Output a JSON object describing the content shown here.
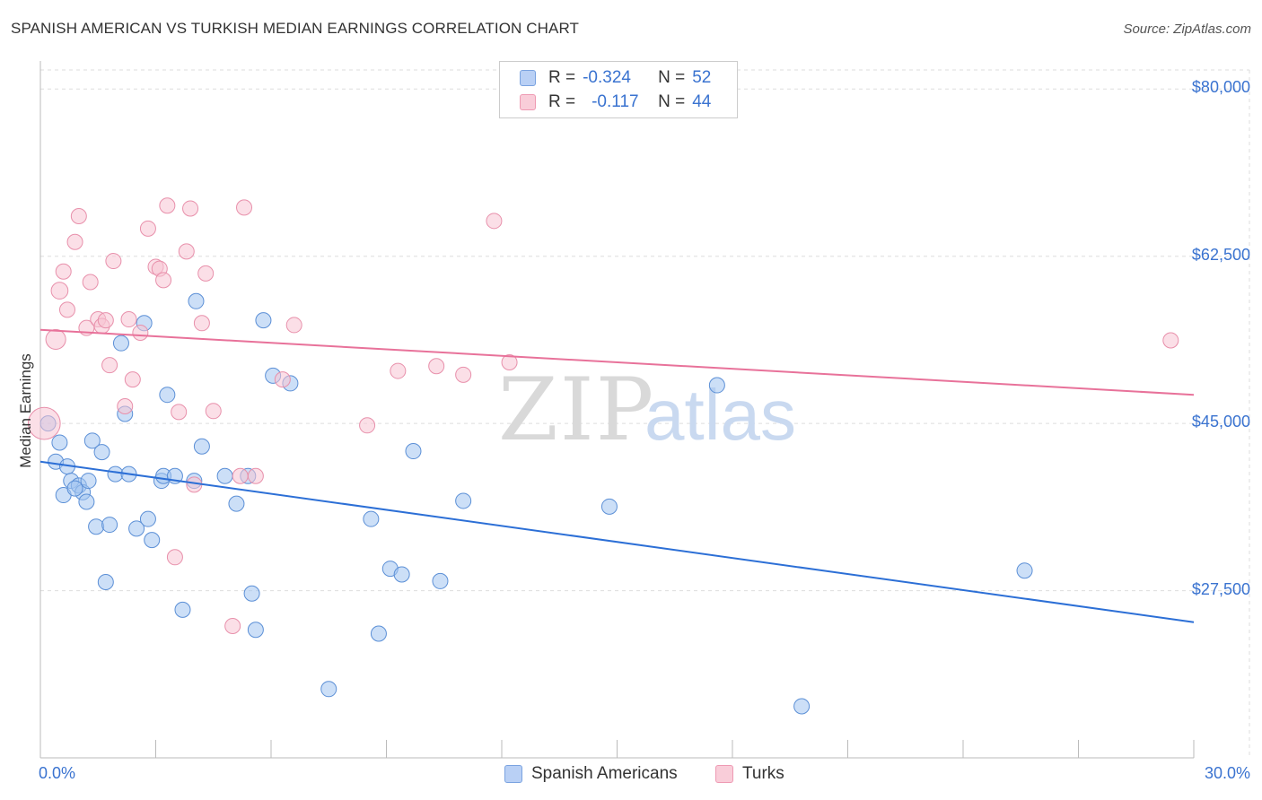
{
  "title": "SPANISH AMERICAN VS TURKISH MEDIAN EARNINGS CORRELATION CHART",
  "source": "Source: ZipAtlas.com",
  "watermark": {
    "zip": "ZIP",
    "atlas": "atlas"
  },
  "legend": {
    "rows": [
      {
        "r_label": "R =",
        "r_value": "-0.324",
        "n_label": "N =",
        "n_value": "52",
        "color": "#b9d0f5",
        "border": "#7aa3e0"
      },
      {
        "r_label": "R =",
        "r_value": "-0.117",
        "n_label": "N =",
        "n_value": "44",
        "color": "#f9cdd9",
        "border": "#ee9ab3"
      }
    ]
  },
  "bottom_legend": [
    {
      "label": "Spanish Americans",
      "color": "#b9d0f5",
      "border": "#7aa3e0"
    },
    {
      "label": "Turks",
      "color": "#f9cdd9",
      "border": "#ee9ab3"
    }
  ],
  "colors": {
    "blue_point_fill": "rgba(163,196,240,0.55)",
    "blue_point_stroke": "#5b8fd6",
    "blue_line": "#2c6fd6",
    "pink_point_fill": "rgba(248,196,212,0.55)",
    "pink_point_stroke": "#e890ab",
    "pink_line": "#e8729a",
    "grid": "#dddddd",
    "axis_text": "#3a73d0"
  },
  "chart_data": {
    "type": "scatter",
    "title": "SPANISH AMERICAN VS TURKISH MEDIAN EARNINGS CORRELATION CHART",
    "xlabel": "",
    "ylabel": "Median Earnings",
    "xlim": [
      0,
      30
    ],
    "ylim": [
      10000,
      82000
    ],
    "x_tick_labels": [
      "0.0%",
      "30.0%"
    ],
    "y_ticks": [
      27500,
      45000,
      62500,
      80000
    ],
    "y_tick_labels": [
      "$27,500",
      "$45,000",
      "$62,500",
      "$80,000"
    ],
    "grid": true,
    "series": [
      {
        "name": "Spanish Americans",
        "r": -0.324,
        "n": 52,
        "trend": {
          "x": [
            0,
            30
          ],
          "y": [
            41000,
            24200
          ]
        },
        "points": [
          [
            0.2,
            45000,
            1.0
          ],
          [
            0.4,
            41000,
            1.0
          ],
          [
            0.5,
            43000,
            1.0
          ],
          [
            0.6,
            37500,
            1.0
          ],
          [
            0.7,
            40500,
            1.0
          ],
          [
            0.8,
            39000,
            1.0
          ],
          [
            1.0,
            38500,
            1.0
          ],
          [
            1.1,
            37800,
            1.0
          ],
          [
            1.2,
            36800,
            1.0
          ],
          [
            1.35,
            43200,
            1.0
          ],
          [
            1.45,
            34200,
            1.0
          ],
          [
            1.6,
            42000,
            1.0
          ],
          [
            1.7,
            28400,
            1.0
          ],
          [
            1.8,
            34400,
            1.0
          ],
          [
            1.95,
            39700,
            1.0
          ],
          [
            2.3,
            39700,
            1.0
          ],
          [
            2.5,
            34000,
            1.0
          ],
          [
            2.8,
            35000,
            1.0
          ],
          [
            2.9,
            32800,
            1.0
          ],
          [
            3.15,
            39000,
            1.0
          ],
          [
            3.2,
            39500,
            1.0
          ],
          [
            3.3,
            48000,
            1.0
          ],
          [
            3.5,
            39500,
            1.0
          ],
          [
            3.7,
            25500,
            1.0
          ],
          [
            4.0,
            39000,
            1.0
          ],
          [
            4.2,
            42600,
            1.0
          ],
          [
            4.8,
            39500,
            1.0
          ],
          [
            5.1,
            36600,
            1.0
          ],
          [
            5.4,
            39500,
            1.0
          ],
          [
            5.5,
            27200,
            1.0
          ],
          [
            5.6,
            23400,
            1.0
          ],
          [
            5.8,
            55800,
            1.0
          ],
          [
            6.05,
            50000,
            1.0
          ],
          [
            6.5,
            49200,
            1.0
          ],
          [
            7.5,
            17200,
            1.0
          ],
          [
            8.6,
            35000,
            1.0
          ],
          [
            8.8,
            23000,
            1.0
          ],
          [
            9.1,
            29800,
            1.0
          ],
          [
            9.4,
            29200,
            1.0
          ],
          [
            9.7,
            42100,
            1.0
          ],
          [
            10.4,
            28500,
            1.0
          ],
          [
            11.0,
            36900,
            1.0
          ],
          [
            14.8,
            36300,
            1.0
          ],
          [
            17.6,
            49000,
            1.0
          ],
          [
            19.8,
            15400,
            1.0
          ],
          [
            25.6,
            29600,
            1.0
          ],
          [
            2.7,
            55500,
            1.0
          ],
          [
            4.05,
            57800,
            1.0
          ],
          [
            2.1,
            53400,
            1.0
          ],
          [
            2.2,
            46000,
            1.0
          ],
          [
            1.25,
            39000,
            1.0
          ],
          [
            0.9,
            38200,
            1.0
          ]
        ]
      },
      {
        "name": "Turks",
        "r": -0.117,
        "n": 44,
        "trend": {
          "x": [
            0,
            30
          ],
          "y": [
            54800,
            48000
          ]
        },
        "points": [
          [
            0.1,
            45000,
            2.1
          ],
          [
            0.4,
            53800,
            1.3
          ],
          [
            0.5,
            58900,
            1.1
          ],
          [
            0.6,
            60900,
            1.0
          ],
          [
            0.7,
            56900,
            1.0
          ],
          [
            0.9,
            64000,
            1.0
          ],
          [
            1.0,
            66700,
            1.0
          ],
          [
            1.2,
            55000,
            1.0
          ],
          [
            1.3,
            59800,
            1.0
          ],
          [
            1.5,
            55900,
            1.0
          ],
          [
            1.6,
            55200,
            1.0
          ],
          [
            1.7,
            55800,
            1.0
          ],
          [
            1.8,
            51100,
            1.0
          ],
          [
            1.9,
            62000,
            1.0
          ],
          [
            2.2,
            46800,
            1.0
          ],
          [
            2.3,
            55900,
            1.0
          ],
          [
            2.4,
            49600,
            1.0
          ],
          [
            2.6,
            54500,
            1.0
          ],
          [
            2.8,
            65400,
            1.0
          ],
          [
            3.0,
            61400,
            1.0
          ],
          [
            3.1,
            61200,
            1.0
          ],
          [
            3.2,
            60000,
            1.0
          ],
          [
            3.3,
            67800,
            1.0
          ],
          [
            3.5,
            31000,
            1.0
          ],
          [
            3.6,
            46200,
            1.0
          ],
          [
            3.8,
            63000,
            1.0
          ],
          [
            3.9,
            67500,
            1.0
          ],
          [
            4.0,
            38600,
            1.0
          ],
          [
            4.2,
            55500,
            1.0
          ],
          [
            4.3,
            60700,
            1.0
          ],
          [
            4.5,
            46300,
            1.0
          ],
          [
            5.0,
            23800,
            1.0
          ],
          [
            5.2,
            39500,
            1.0
          ],
          [
            5.3,
            67600,
            1.0
          ],
          [
            5.6,
            39500,
            1.0
          ],
          [
            6.3,
            49600,
            1.0
          ],
          [
            6.6,
            55300,
            1.0
          ],
          [
            8.5,
            44800,
            1.0
          ],
          [
            9.3,
            50500,
            1.0
          ],
          [
            10.3,
            51000,
            1.0
          ],
          [
            11.0,
            50100,
            1.0
          ],
          [
            11.8,
            66200,
            1.0
          ],
          [
            12.2,
            51400,
            1.0
          ],
          [
            29.4,
            53700,
            1.0
          ]
        ]
      }
    ]
  }
}
